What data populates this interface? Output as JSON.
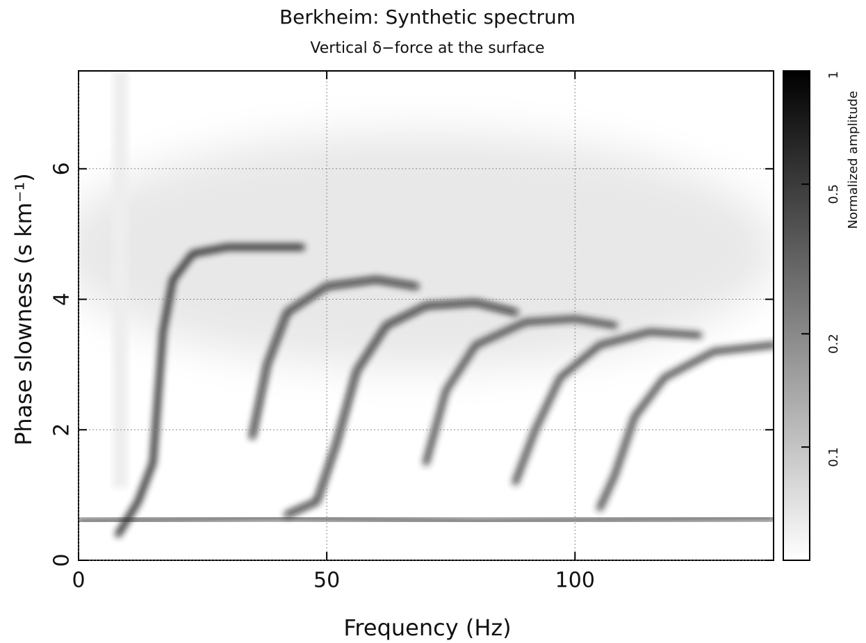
{
  "chart_data": {
    "type": "ridge-heatmap",
    "title": "Berkheim: Synthetic spectrum",
    "subtitle": "Vertical δ−force at the surface",
    "x_label": "Frequency (Hz)",
    "y_label": "Phase slowness (s km⁻¹)",
    "colorbar_label": "Normalized amplitude",
    "xlim": [
      0,
      140
    ],
    "xticks": [
      0,
      50,
      100
    ],
    "ylim": [
      0,
      7.5
    ],
    "yticks": [
      0,
      2,
      4,
      6
    ],
    "clim": [
      0.05,
      1
    ],
    "cticks": [
      0.1,
      0.2,
      0.5,
      1
    ],
    "colorbar_log": true,
    "grid": true,
    "series": [
      {
        "color": "#000000",
        "x": [
          8,
          12,
          15,
          16,
          17,
          19,
          23,
          30,
          45
        ],
        "y": [
          0.4,
          0.9,
          1.5,
          2.5,
          3.5,
          4.3,
          4.7,
          4.8,
          4.8
        ]
      },
      {
        "color": "#111111",
        "x": [
          35,
          38,
          42,
          50,
          60,
          68
        ],
        "y": [
          1.9,
          3.0,
          3.8,
          4.2,
          4.3,
          4.2
        ]
      },
      {
        "color": "#111111",
        "x": [
          42,
          48,
          52,
          56,
          62,
          70,
          80,
          88
        ],
        "y": [
          0.7,
          0.9,
          1.8,
          2.9,
          3.6,
          3.9,
          3.95,
          3.8
        ]
      },
      {
        "color": "#222222",
        "x": [
          70,
          74,
          80,
          90,
          100,
          108
        ],
        "y": [
          1.5,
          2.6,
          3.3,
          3.65,
          3.7,
          3.6
        ]
      },
      {
        "color": "#222222",
        "x": [
          88,
          92,
          97,
          105,
          115,
          125
        ],
        "y": [
          1.2,
          2.0,
          2.8,
          3.3,
          3.5,
          3.45
        ]
      },
      {
        "color": "#222222",
        "x": [
          105,
          108,
          112,
          118,
          128,
          140
        ],
        "y": [
          0.8,
          1.3,
          2.2,
          2.8,
          3.2,
          3.3
        ]
      },
      {
        "color": "#333333",
        "x": [
          0,
          40,
          80,
          140
        ],
        "y": [
          0.6,
          0.65,
          0.6,
          0.65
        ]
      }
    ]
  }
}
